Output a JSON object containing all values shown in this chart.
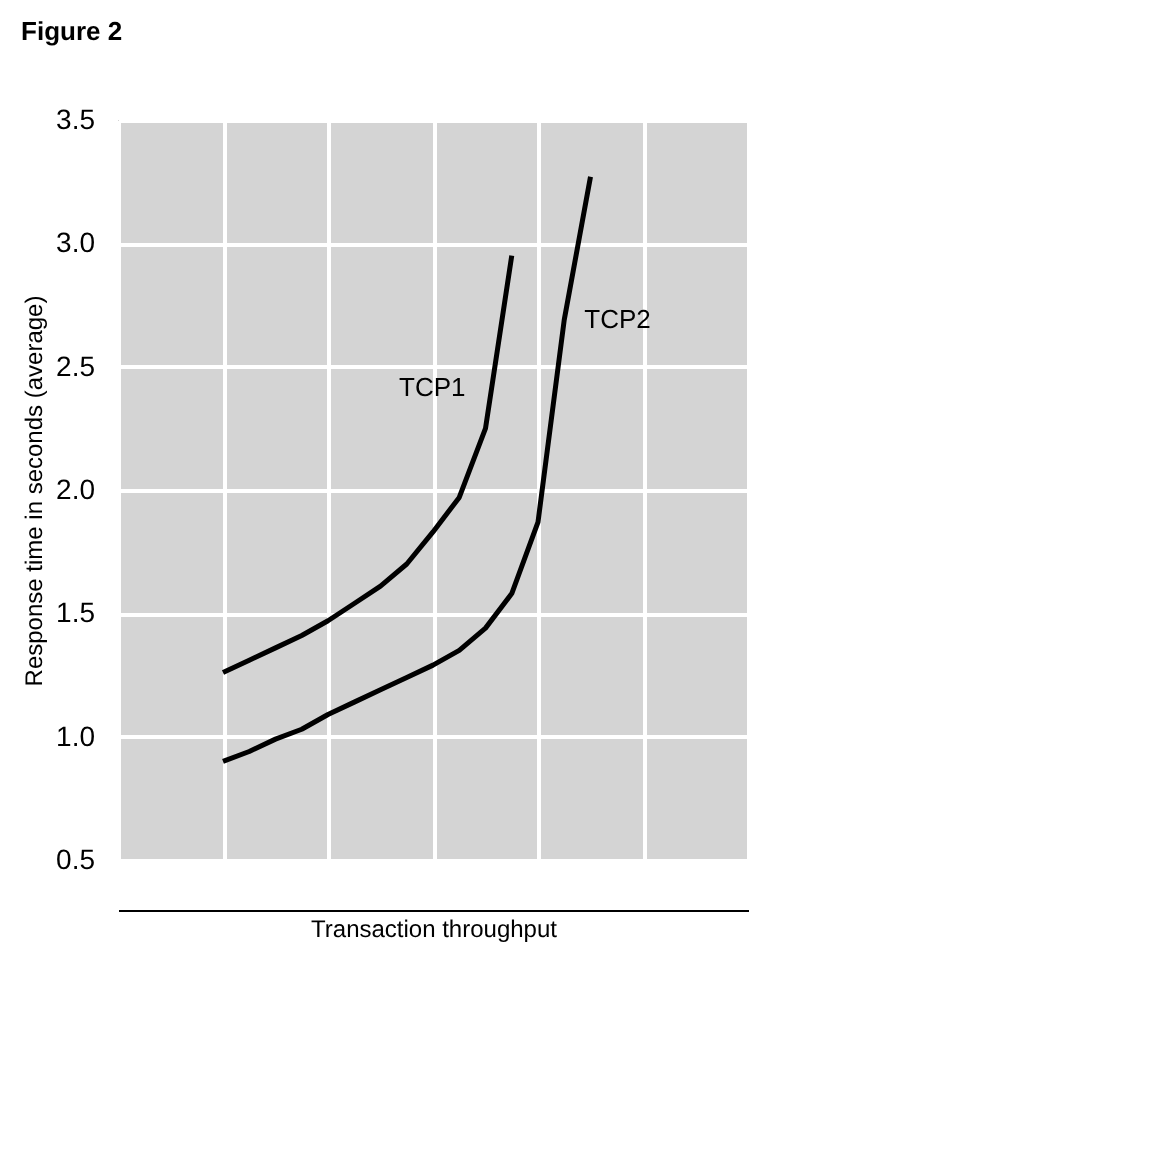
{
  "chart_data": {
    "type": "line",
    "title": "Figure 2",
    "xlabel": "Transaction throughput",
    "ylabel": "Response time in seconds (average)",
    "categories": [
      null,
      null,
      null,
      null,
      null,
      null,
      null,
      null,
      null,
      null,
      null,
      null,
      null,
      null,
      null,
      null,
      null,
      null,
      null,
      null,
      null,
      null,
      null,
      null,
      null
    ],
    "series": [
      {
        "name": "TCP1",
        "color": "#000000",
        "values": [
          null,
          null,
          null,
          null,
          1.26,
          1.31,
          1.36,
          1.41,
          1.47,
          1.54,
          1.61,
          1.7,
          1.83,
          1.97,
          2.25,
          2.95,
          null,
          null,
          null,
          null,
          null,
          null,
          null,
          null,
          null
        ]
      },
      {
        "name": "TCP2",
        "color": "#000000",
        "values": [
          null,
          null,
          null,
          null,
          0.9,
          0.94,
          0.99,
          1.03,
          1.09,
          1.14,
          1.19,
          1.24,
          1.29,
          1.35,
          1.44,
          1.58,
          1.87,
          2.69,
          3.27,
          null,
          null,
          null,
          null,
          null,
          null
        ]
      }
    ],
    "ylim": [
      0.5,
      3.5
    ],
    "yticks": [
      0.5,
      {
        "value": 1,
        "label": "1.0"
      },
      1.5,
      {
        "value": 2,
        "label": "2.0"
      },
      2.5,
      {
        "value": 3,
        "label": "3.0"
      },
      3.5
    ],
    "tick_labels": "y",
    "grid": true,
    "marker": "none",
    "line_style": "solid"
  }
}
